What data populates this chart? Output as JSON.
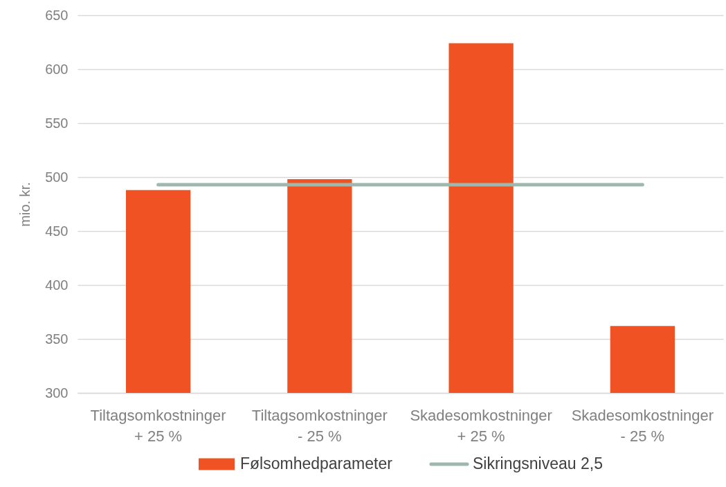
{
  "chart_data": {
    "type": "bar",
    "ylabel": "mio. kr.",
    "categories": [
      "Tiltagsomkostninger\n+ 25 %",
      "Tiltagsomkostninger\n- 25 %",
      "Skadesomkostninger\n+ 25 %",
      "Skadesomkostninger\n- 25 %"
    ],
    "series": [
      {
        "name": "Følsomhedparameter",
        "color": "#f05223",
        "values": [
          488,
          498,
          624,
          362
        ]
      },
      {
        "name": "Sikringsniveau 2,5",
        "type": "line",
        "color": "#9fb8ad",
        "values": [
          493,
          493,
          493,
          493
        ]
      }
    ],
    "ylim": [
      300,
      650
    ],
    "yticks": [
      300,
      350,
      400,
      450,
      500,
      550,
      600,
      650
    ],
    "grid": "y",
    "legend": "bottom"
  }
}
